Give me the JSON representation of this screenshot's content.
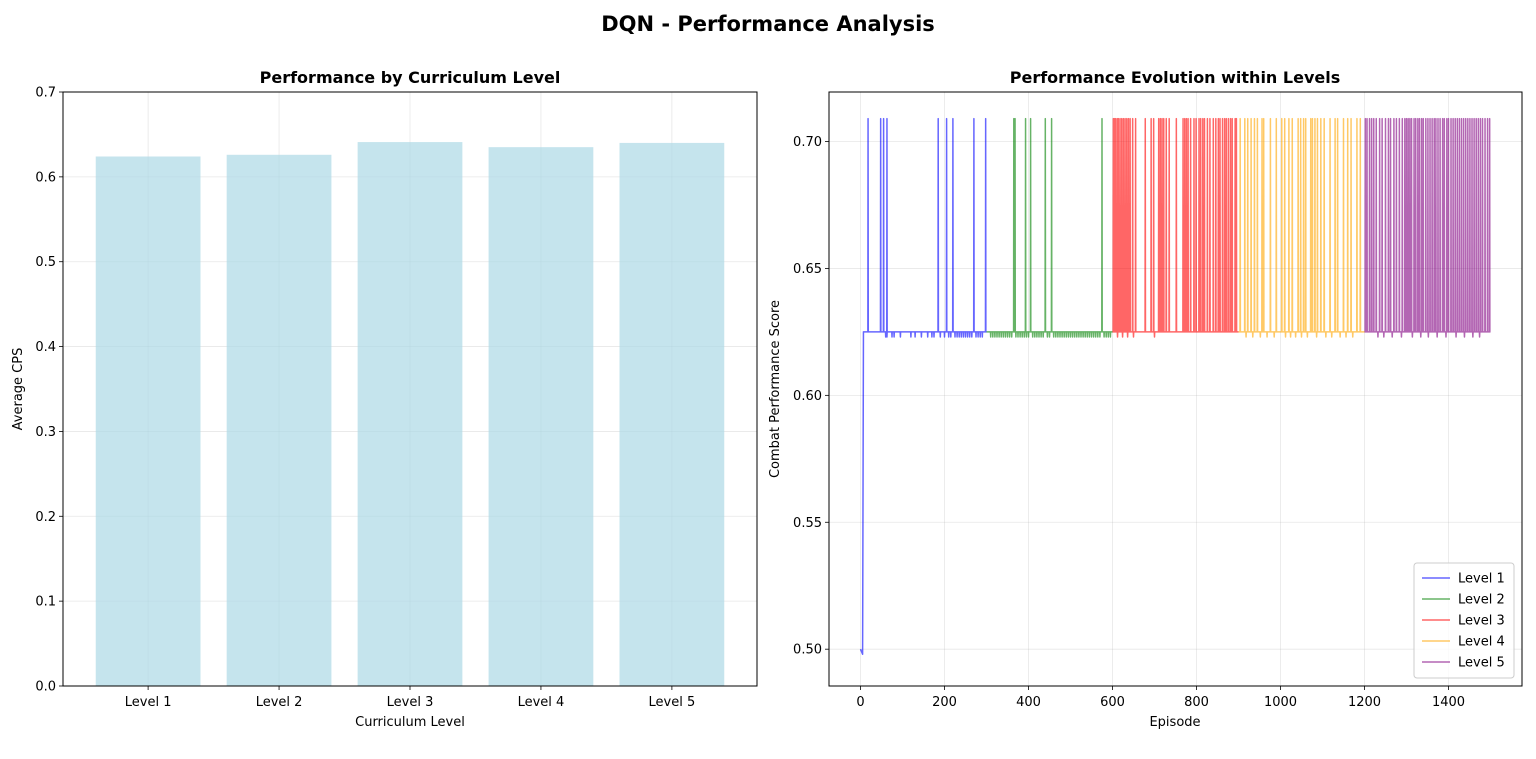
{
  "figure": {
    "title": "DQN - Performance Analysis"
  },
  "chart_data": [
    {
      "type": "bar",
      "title": "Performance by Curriculum Level",
      "xlabel": "Curriculum Level",
      "ylabel": "Average CPS",
      "categories": [
        "Level 1",
        "Level 2",
        "Level 3",
        "Level 4",
        "Level 5"
      ],
      "values": [
        0.624,
        0.626,
        0.641,
        0.635,
        0.64
      ],
      "ylim": [
        0,
        0.7
      ],
      "yticks": [
        0.0,
        0.1,
        0.2,
        0.3,
        0.4,
        0.5,
        0.6,
        0.7
      ],
      "ytick_labels": [
        "0.0",
        "0.1",
        "0.2",
        "0.3",
        "0.4",
        "0.5",
        "0.6",
        "0.7"
      ],
      "grid": true,
      "bar_color": "#add8e6"
    },
    {
      "type": "line",
      "title": "Performance Evolution within Levels",
      "xlabel": "Episode",
      "ylabel": "Combat Performance Score",
      "xlim": [
        -75,
        1575
      ],
      "ylim": [
        0.4855,
        0.7195
      ],
      "xticks": [
        0,
        200,
        400,
        600,
        800,
        1000,
        1200,
        1400
      ],
      "xtick_labels": [
        "0",
        "200",
        "400",
        "600",
        "800",
        "1000",
        "1200",
        "1400"
      ],
      "yticks": [
        0.5,
        0.55,
        0.6,
        0.65,
        0.7
      ],
      "ytick_labels": [
        "0.50",
        "0.55",
        "0.60",
        "0.65",
        "0.70"
      ],
      "grid": true,
      "legend_position": "lower-right",
      "baseline": 0.625,
      "peak": 0.709,
      "dip": 0.623,
      "series": [
        {
          "name": "Level 1",
          "color": "#0000ff",
          "range": [
            0,
            300
          ],
          "start": [
            [
              0,
              0.5
            ],
            [
              5,
              0.498
            ],
            [
              7,
              0.625
            ]
          ],
          "spikes": [
            18,
            48,
            55,
            63,
            185,
            205,
            220,
            270,
            298
          ],
          "dips": [
            60,
            63,
            75,
            80,
            95,
            120,
            130,
            145,
            160,
            170,
            175,
            190,
            200,
            210,
            215,
            225,
            230,
            235,
            240,
            245,
            250,
            255,
            260,
            265,
            275,
            280,
            285,
            290
          ]
        },
        {
          "name": "Level 2",
          "color": "#008000",
          "range": [
            300,
            600
          ],
          "spikes": [
            365,
            368,
            393,
            405,
            440,
            455,
            575
          ],
          "dips": [
            310,
            315,
            320,
            325,
            330,
            335,
            340,
            345,
            350,
            355,
            360,
            370,
            375,
            380,
            385,
            390,
            395,
            400,
            410,
            415,
            420,
            425,
            430,
            435,
            445,
            450,
            460,
            465,
            470,
            475,
            480,
            485,
            490,
            495,
            500,
            505,
            510,
            515,
            520,
            525,
            530,
            535,
            540,
            545,
            550,
            555,
            560,
            565,
            570,
            580,
            585,
            590,
            595
          ]
        },
        {
          "name": "Level 3",
          "color": "#ff0000",
          "range": [
            600,
            900
          ],
          "spikes": [
            602,
            604,
            607,
            611,
            614,
            618,
            622,
            626,
            630,
            634,
            638,
            642,
            648,
            655,
            678,
            692,
            698,
            710,
            714,
            718,
            722,
            728,
            735,
            752,
            768,
            772,
            776,
            780,
            786,
            794,
            799,
            806,
            810,
            815,
            819,
            826,
            832,
            840,
            846,
            852,
            856,
            862,
            867,
            871,
            876,
            881,
            885,
            892,
            895
          ],
          "dips": [
            612,
            624,
            636,
            650,
            700
          ]
        },
        {
          "name": "Level 4",
          "color": "#ffa500",
          "range": [
            900,
            1200
          ],
          "spikes": [
            904,
            915,
            922,
            930,
            938,
            945,
            956,
            960,
            976,
            990,
            1003,
            1010,
            1020,
            1028,
            1042,
            1048,
            1055,
            1060,
            1072,
            1076,
            1082,
            1088,
            1096,
            1104,
            1118,
            1130,
            1136,
            1150,
            1160,
            1168,
            1182,
            1190
          ],
          "dips": [
            918,
            934,
            952,
            968,
            985,
            1012,
            1024,
            1036,
            1050,
            1064,
            1086,
            1108,
            1122,
            1142,
            1156,
            1172
          ]
        },
        {
          "name": "Level 5",
          "color": "#800080",
          "range": [
            1200,
            1500
          ],
          "spikes": [
            1202,
            1206,
            1212,
            1217,
            1222,
            1228,
            1236,
            1242,
            1250,
            1257,
            1262,
            1270,
            1276,
            1283,
            1290,
            1296,
            1300,
            1304,
            1308,
            1312,
            1318,
            1322,
            1327,
            1331,
            1336,
            1340,
            1346,
            1351,
            1356,
            1361,
            1366,
            1370,
            1375,
            1380,
            1386,
            1390,
            1396,
            1400,
            1406,
            1411,
            1416,
            1421,
            1426,
            1431,
            1436,
            1441,
            1446,
            1451,
            1456,
            1461,
            1466,
            1471,
            1476,
            1481,
            1487,
            1493,
            1498
          ],
          "dips": [
            1232,
            1246,
            1266,
            1288,
            1314,
            1334,
            1352,
            1373,
            1394,
            1418,
            1438,
            1458,
            1474
          ]
        }
      ]
    }
  ]
}
